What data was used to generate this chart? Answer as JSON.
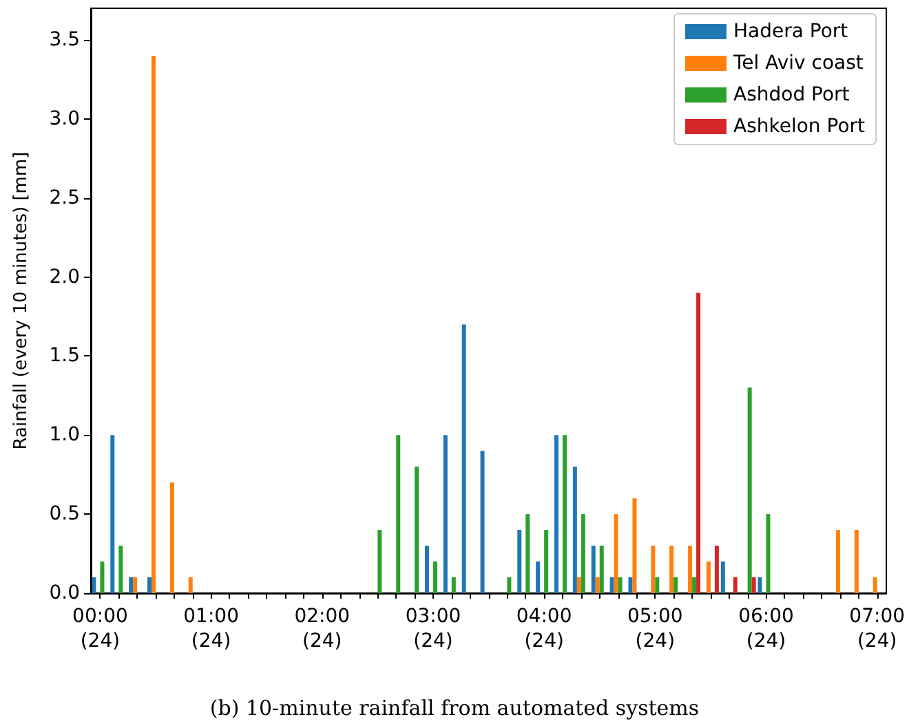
{
  "chart_data": {
    "type": "bar",
    "title": "(b) 10-minute rainfall from automated systems",
    "ylabel": "Rainfall (every 10 minutes) [mm]",
    "categories": [
      "00:00\n(24)",
      null,
      null,
      null,
      null,
      null,
      "01:00\n(24)",
      null,
      null,
      null,
      null,
      null,
      "02:00\n(24)",
      null,
      null,
      null,
      null,
      null,
      "03:00\n(24)",
      null,
      null,
      null,
      null,
      null,
      "04:00\n(24)",
      null,
      null,
      null,
      null,
      null,
      "05:00\n(24)",
      null,
      null,
      null,
      null,
      null,
      "06:00\n(24)",
      null,
      null,
      null,
      null,
      null,
      "07:00\n(24)"
    ],
    "series": [
      {
        "name": "Hadera Port",
        "color": "#1f77b4",
        "values": [
          0.1,
          1.0,
          0.1,
          0.1,
          null,
          null,
          null,
          null,
          null,
          null,
          null,
          null,
          null,
          null,
          null,
          null,
          null,
          null,
          0.3,
          1.0,
          1.7,
          0.9,
          null,
          0.4,
          0.2,
          1.0,
          0.8,
          0.3,
          0.1,
          0.1,
          null,
          null,
          null,
          null,
          0.2,
          null,
          0.1,
          null,
          null,
          null,
          null,
          null,
          null
        ]
      },
      {
        "name": "Tel Aviv coast",
        "color": "#ff7f0e",
        "values": [
          null,
          null,
          0.1,
          3.4,
          0.7,
          0.1,
          null,
          null,
          null,
          null,
          null,
          null,
          null,
          null,
          null,
          null,
          null,
          null,
          null,
          null,
          null,
          null,
          null,
          null,
          null,
          null,
          0.1,
          0.1,
          0.5,
          0.6,
          0.3,
          0.3,
          0.3,
          0.2,
          null,
          null,
          null,
          null,
          null,
          null,
          0.4,
          0.4,
          0.1
        ]
      },
      {
        "name": "Ashdod Port",
        "color": "#2ca02c",
        "values": [
          0.2,
          0.3,
          null,
          null,
          null,
          null,
          null,
          null,
          null,
          null,
          null,
          null,
          null,
          null,
          null,
          0.4,
          1.0,
          0.8,
          0.2,
          0.1,
          null,
          null,
          0.1,
          0.5,
          0.4,
          1.0,
          0.5,
          0.3,
          0.1,
          null,
          0.1,
          0.1,
          0.1,
          null,
          null,
          1.3,
          0.5,
          null,
          null,
          null,
          null,
          null,
          null
        ]
      },
      {
        "name": "Ashkelon Port",
        "color": "#d62728",
        "values": [
          null,
          null,
          null,
          null,
          null,
          null,
          null,
          null,
          null,
          null,
          null,
          null,
          null,
          null,
          null,
          null,
          null,
          null,
          null,
          null,
          null,
          null,
          null,
          null,
          null,
          null,
          null,
          null,
          null,
          null,
          null,
          null,
          1.9,
          0.3,
          0.1,
          0.1,
          null,
          null,
          null,
          null,
          null,
          null,
          null
        ]
      }
    ],
    "ylim": [
      0,
      3.7
    ],
    "yticks": [
      {
        "value": 0,
        "label": "0.0"
      },
      {
        "value": 0.5,
        "label": "0.5"
      },
      {
        "value": 1,
        "label": "1.0"
      },
      {
        "value": 1.5,
        "label": "1.5"
      },
      {
        "value": 2,
        "label": "2.0"
      },
      {
        "value": 2.5,
        "label": "2.5"
      },
      {
        "value": 3,
        "label": "3.0"
      },
      {
        "value": 3.5,
        "label": "3.5"
      }
    ],
    "legend": "top right",
    "grid": false
  }
}
